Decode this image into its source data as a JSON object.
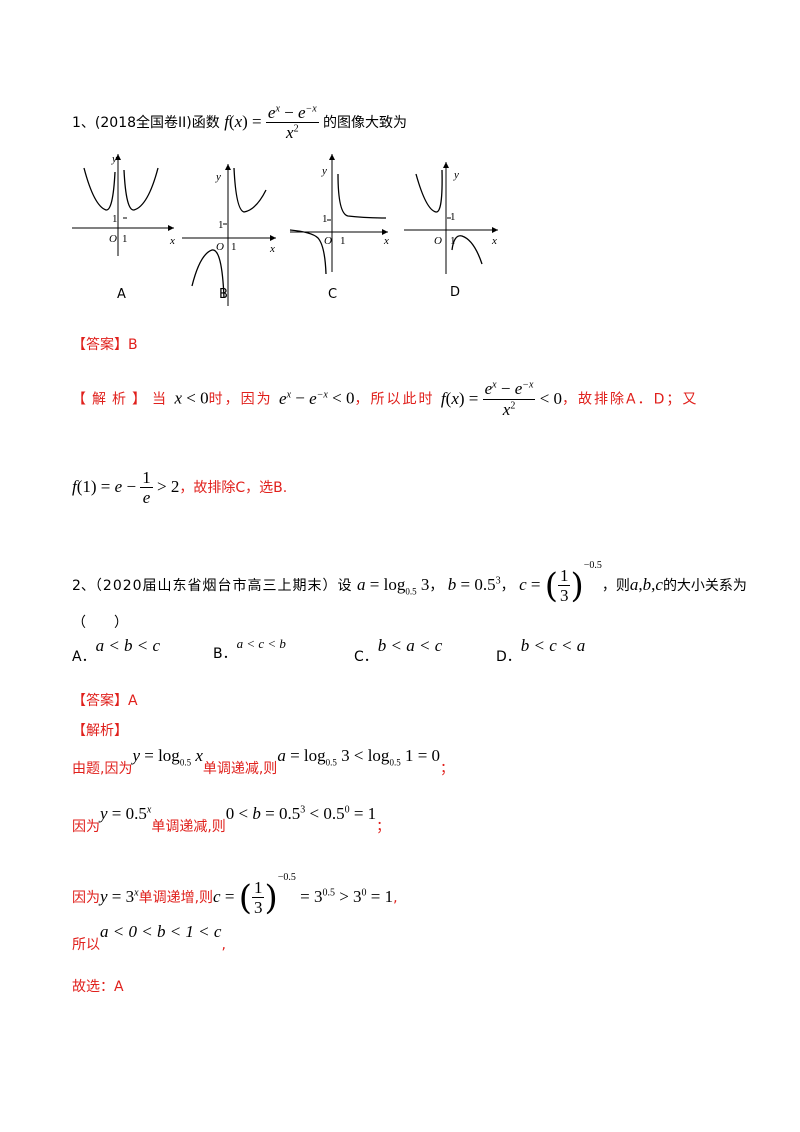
{
  "q1": {
    "number": "1、",
    "source": "(2018全国卷II)函数",
    "suffix": "的图像大致为",
    "option_labels": [
      "A",
      "B",
      "C",
      "D"
    ],
    "graph_text": {
      "x": "x",
      "y": "y",
      "o": "O",
      "one": "1"
    },
    "answer_tag": "【答案】",
    "answer": "B",
    "analysis_tag": "【解析】",
    "analysis_1": "当",
    "analysis_2": "时，因为",
    "analysis_3": "，所以此时",
    "analysis_4": "，故排除A．D；又",
    "analysis_5": "，故排除C，选B."
  },
  "q2": {
    "number": "2、",
    "source": "（2020届山东省烟台市高三上期末）设",
    "comma": "，",
    "then": "，则",
    "suffix": "的大小关系为",
    "paren": "（　　）",
    "options": [
      {
        "label": "A．",
        "expr": "a < b < c"
      },
      {
        "label": "B．",
        "expr": "a < c < b"
      },
      {
        "label": "C．",
        "expr": "b < a < c"
      },
      {
        "label": "D．",
        "expr": "b < c < a"
      }
    ],
    "answer_tag": "【答案】",
    "answer": "A",
    "analysis_tag": "【解析】",
    "line1_a": "由题,因为",
    "line1_b": "单调递减,则",
    "line1_end": "；",
    "line2_a": "因为",
    "line2_b": "单调递减,则",
    "line2_end": "；",
    "line3_a": "因为",
    "line3_b": "单调递增,则",
    "line3_end": ",",
    "line4_a": "所以",
    "line4_end": ",",
    "final": "故选：A"
  }
}
